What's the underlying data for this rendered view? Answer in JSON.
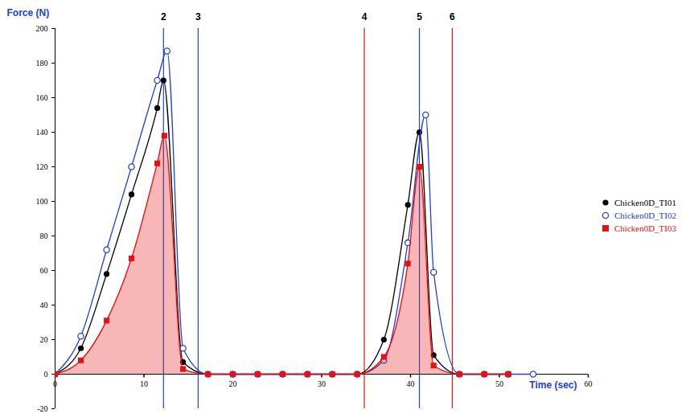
{
  "chart_data": {
    "type": "line",
    "x_label": "Time (sec)",
    "y_label": "Force (N)",
    "xlim": [
      0,
      60
    ],
    "xticks": [
      0,
      10,
      20,
      30,
      40,
      50,
      60
    ],
    "ylim": [
      -20,
      200
    ],
    "yticks": [
      -20,
      0,
      20,
      40,
      60,
      80,
      100,
      120,
      140,
      160,
      180,
      200
    ],
    "legend": "right",
    "series": [
      {
        "name": "Chicken0D_TI01",
        "color": "#000000",
        "marker": "circle",
        "type": "line",
        "x": [
          0,
          2.9,
          5.8,
          8.6,
          11.5,
          12.2,
          14.4,
          17.2,
          20.0,
          22.8,
          25.6,
          28.4,
          31.2,
          34.0,
          37.0,
          39.7,
          41.0,
          42.6,
          45.5,
          48.3,
          51.0
        ],
        "values": [
          0,
          15,
          58,
          104,
          154,
          170,
          7,
          0,
          0,
          0,
          0,
          0,
          0,
          0,
          20,
          98,
          140,
          11,
          0,
          0,
          0
        ]
      },
      {
        "name": "Chicken0D_TI02",
        "color": "#2040e0",
        "marker": "open_circle",
        "type": "line",
        "x": [
          0,
          2.9,
          5.8,
          8.6,
          11.5,
          12.6,
          14.4,
          17.2,
          20.0,
          22.8,
          25.6,
          28.4,
          31.2,
          34.0,
          37.0,
          39.7,
          41.7,
          42.6,
          45.5,
          48.3,
          51.0,
          53.8
        ],
        "values": [
          0,
          22,
          72,
          120,
          170,
          187,
          15,
          0,
          0,
          0,
          0,
          0,
          0,
          0,
          8,
          76,
          150,
          59,
          0,
          0,
          0,
          0
        ]
      },
      {
        "name": "Chicken0D_TI03",
        "color": "#e81010",
        "marker": "square",
        "type": "area",
        "x": [
          0,
          2.9,
          5.8,
          8.6,
          11.5,
          12.3,
          14.4,
          17.2,
          20.0,
          22.8,
          25.6,
          28.4,
          31.2,
          34.0,
          37.0,
          39.7,
          41.0,
          42.6,
          45.5,
          48.3,
          51.0
        ],
        "values": [
          0,
          8,
          31,
          67,
          122,
          138,
          3,
          0,
          0,
          0,
          0,
          0,
          0,
          0,
          10,
          64,
          120,
          5,
          0,
          0,
          0
        ]
      }
    ],
    "vlines": [
      {
        "x": 12.2,
        "label": "2",
        "color": "#2040e0"
      },
      {
        "x": 16.1,
        "label": "3",
        "color": "#2040e0"
      },
      {
        "x": 34.8,
        "label": "4",
        "color": "#e81010"
      },
      {
        "x": 41.0,
        "label": "5",
        "color": "#2040e0"
      },
      {
        "x": 44.7,
        "label": "6",
        "color": "#e81010"
      }
    ]
  }
}
